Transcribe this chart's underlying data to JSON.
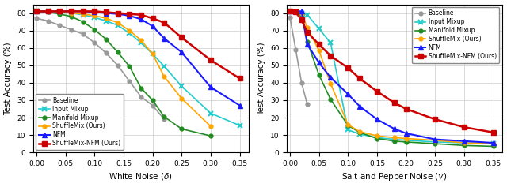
{
  "white_noise": {
    "x": [
      0.0,
      0.02,
      0.04,
      0.06,
      0.08,
      0.1,
      0.12,
      0.14,
      0.16,
      0.18,
      0.2,
      0.22,
      0.25,
      0.3,
      0.35
    ],
    "baseline": [
      77.0,
      75.5,
      73.0,
      70.5,
      68.0,
      63.0,
      57.0,
      50.0,
      41.0,
      32.0,
      27.0,
      19.0,
      null,
      null,
      null
    ],
    "input_mixup": [
      81.0,
      81.0,
      80.5,
      80.0,
      79.0,
      77.5,
      75.5,
      73.0,
      68.5,
      63.0,
      56.5,
      49.5,
      38.0,
      22.5,
      15.5
    ],
    "manifold_mixup": [
      81.0,
      80.5,
      79.5,
      78.0,
      75.0,
      70.5,
      65.0,
      57.5,
      49.5,
      37.0,
      30.0,
      20.5,
      13.5,
      9.5,
      null
    ],
    "shufflemix": [
      81.0,
      81.0,
      80.5,
      80.0,
      79.5,
      78.5,
      77.0,
      74.5,
      70.0,
      64.5,
      56.5,
      43.5,
      31.0,
      15.0,
      null
    ],
    "nfm": [
      81.0,
      81.0,
      81.0,
      81.0,
      81.0,
      80.5,
      80.0,
      79.5,
      78.5,
      76.5,
      72.5,
      65.5,
      57.5,
      37.5,
      27.0
    ],
    "shufflemix_nfm": [
      81.0,
      81.0,
      81.0,
      81.0,
      81.0,
      81.0,
      80.5,
      80.0,
      79.5,
      79.0,
      77.0,
      74.5,
      66.0,
      53.0,
      42.5
    ]
  },
  "salt_pepper": {
    "x": [
      0.0,
      0.01,
      0.02,
      0.03,
      0.05,
      0.07,
      0.1,
      0.12,
      0.15,
      0.18,
      0.2,
      0.25,
      0.3,
      0.35
    ],
    "baseline": [
      77.5,
      59.0,
      40.0,
      27.5,
      null,
      null,
      null,
      null,
      null,
      null,
      null,
      null,
      null,
      null
    ],
    "input_mixup": [
      81.0,
      80.5,
      80.0,
      79.0,
      71.0,
      63.0,
      13.0,
      10.5,
      8.5,
      7.5,
      7.0,
      6.0,
      5.5,
      5.0
    ],
    "manifold_mixup": [
      81.0,
      80.5,
      79.0,
      63.5,
      44.5,
      30.5,
      15.5,
      11.5,
      8.0,
      6.5,
      6.0,
      5.0,
      4.0,
      3.5
    ],
    "shufflemix": [
      81.0,
      81.0,
      80.0,
      71.5,
      58.5,
      39.5,
      16.0,
      12.0,
      9.5,
      8.5,
      8.0,
      7.0,
      5.5,
      5.0
    ],
    "nfm": [
      81.0,
      81.0,
      81.0,
      62.0,
      51.5,
      43.0,
      33.5,
      26.5,
      19.0,
      13.5,
      11.0,
      7.5,
      6.5,
      5.5
    ],
    "shufflemix_nfm": [
      81.0,
      80.5,
      76.0,
      69.0,
      62.0,
      55.5,
      48.5,
      42.5,
      35.0,
      28.5,
      25.0,
      19.0,
      14.5,
      11.5
    ]
  },
  "colors": {
    "baseline": "#999999",
    "input_mixup": "#22CCCC",
    "manifold_mixup": "#228B22",
    "shufflemix": "#FFA500",
    "nfm": "#1a1aff",
    "shufflemix_nfm": "#CC0000"
  },
  "markers": {
    "baseline": "o",
    "input_mixup": "x",
    "manifold_mixup": "o",
    "shufflemix": "o",
    "nfm": "^",
    "shufflemix_nfm": "s"
  },
  "labels": {
    "baseline": "Baseline",
    "input_mixup": "Input Mixup",
    "manifold_mixup": "Manifold Mixup",
    "shufflemix": "ShuffleMix (Ours)",
    "nfm": "NFM",
    "shufflemix_nfm": "ShuffleMix-NFM (Ours)"
  },
  "xlabel_left": "White Noise ($\\delta$)",
  "xlabel_right": "Salt and Pepper Noise ($\\gamma$)",
  "ylabel": "Test Accuracy (%)",
  "ylim": [
    0,
    85
  ],
  "yticks": [
    0,
    10,
    20,
    30,
    40,
    50,
    60,
    70,
    80
  ],
  "xlim": [
    -0.005,
    0.365
  ],
  "xticks": [
    0.0,
    0.05,
    0.1,
    0.15,
    0.2,
    0.25,
    0.3,
    0.35
  ]
}
